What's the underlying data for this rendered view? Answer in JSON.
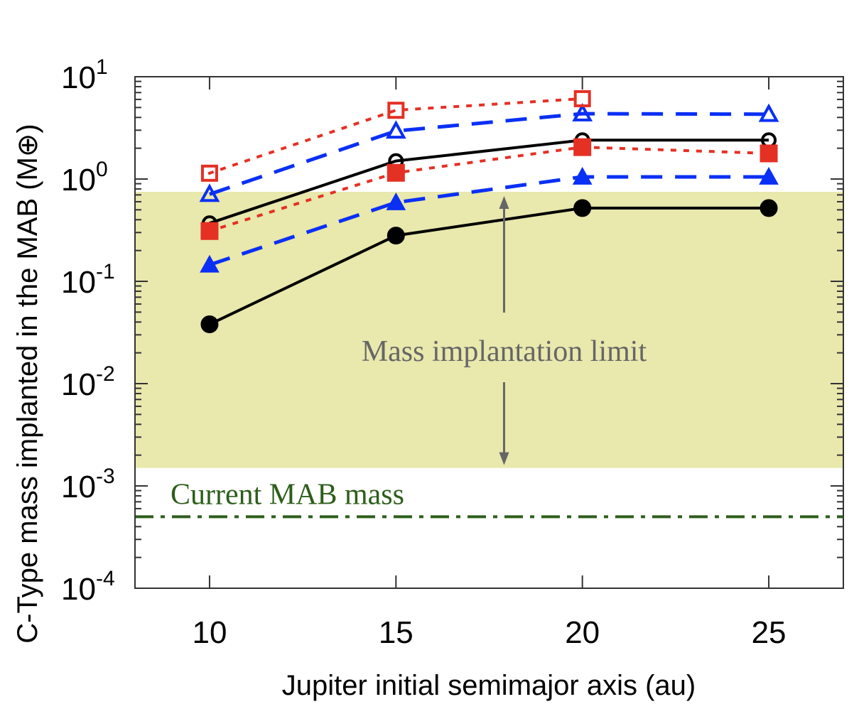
{
  "chart_data": {
    "type": "line",
    "xlabel": "Jupiter initial semimajor axis (au)",
    "ylabel": "C-Type mass implanted in the MAB (M⊕)",
    "xlim": [
      8,
      27
    ],
    "ylim": [
      0.0001,
      10
    ],
    "yscale": "log",
    "xticks": [
      10,
      15,
      20,
      25
    ],
    "yticks": [
      {
        "base": "10",
        "exp": "-4"
      },
      {
        "base": "10",
        "exp": "-3"
      },
      {
        "base": "10",
        "exp": "-2"
      },
      {
        "base": "10",
        "exp": "-1"
      },
      {
        "base": "10",
        "exp": "0"
      },
      {
        "base": "10",
        "exp": "1"
      }
    ],
    "grid": false,
    "series": [
      {
        "marker": "filled-circle",
        "line": "solid",
        "color": "#000000",
        "x": [
          10,
          15,
          20,
          25
        ],
        "y": [
          0.038,
          0.28,
          0.52,
          0.52
        ]
      },
      {
        "marker": "open-circle",
        "line": "solid",
        "color": "#000000",
        "x": [
          10,
          15,
          20,
          25
        ],
        "y": [
          0.37,
          1.5,
          2.4,
          2.4
        ]
      },
      {
        "marker": "filled-triangle",
        "line": "dashed",
        "color": "#0a2ff5",
        "x": [
          10,
          15,
          20,
          25
        ],
        "y": [
          0.145,
          0.59,
          1.05,
          1.05
        ]
      },
      {
        "marker": "open-triangle",
        "line": "dashed",
        "color": "#0a2ff5",
        "x": [
          10,
          15,
          20,
          25
        ],
        "y": [
          0.71,
          2.95,
          4.35,
          4.3
        ]
      },
      {
        "marker": "filled-square",
        "line": "dotted",
        "color": "#e53024",
        "x": [
          10,
          15,
          20,
          25
        ],
        "y": [
          0.31,
          1.15,
          2.05,
          1.78
        ]
      },
      {
        "marker": "open-square",
        "line": "dotted",
        "color": "#e53024",
        "x": [
          10,
          15,
          20
        ],
        "y": [
          1.14,
          4.7,
          6.1
        ]
      }
    ],
    "shaded_band": {
      "ymin": 0.0015,
      "ymax": 0.75,
      "color": "#e9e8ad",
      "label": "Mass implantation limit",
      "label_color": "#666666",
      "arrow_x": 17.9
    },
    "reference_line": {
      "y": 0.0005,
      "style": "dash-dot",
      "color": "#2d5e1a",
      "label": "Current MAB mass"
    }
  }
}
